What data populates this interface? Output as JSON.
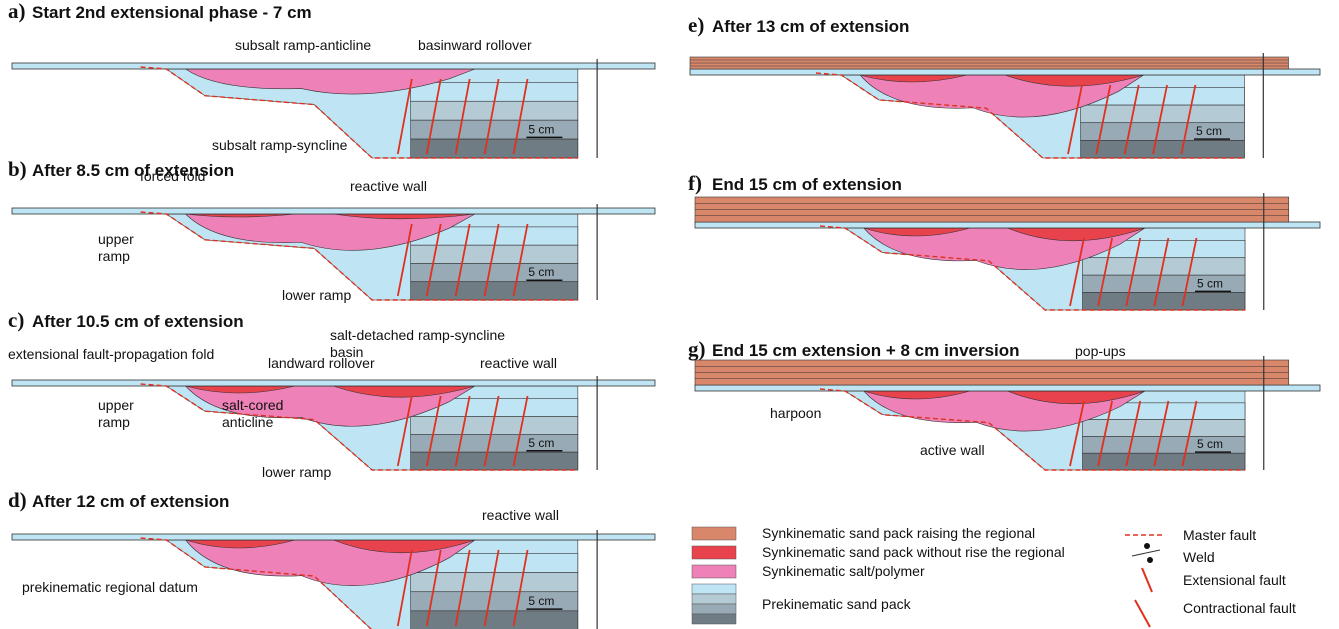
{
  "panels": [
    {
      "label": "a)",
      "title": "Start 2nd extensional phase - 7 cm",
      "scale": "5 cm",
      "annotations": [
        [
          "subsalt ramp-anticline"
        ],
        [
          "basinward rollover"
        ],
        [
          "subsalt ramp-syncline"
        ]
      ]
    },
    {
      "label": "b)",
      "title": "After 8.5 cm of extension",
      "scale": "5 cm",
      "annotations": [
        [
          "forced fold"
        ],
        [
          "reactive wall"
        ],
        [
          "upper",
          "ramp"
        ],
        [
          "lower ramp"
        ]
      ]
    },
    {
      "label": "c)",
      "title": "After 10.5 cm of extension",
      "scale": "5 cm",
      "annotations": [
        [
          "extensional fault-propagation fold"
        ],
        [
          "landward rollover"
        ],
        [
          "salt-detached ramp-syncline",
          "basin"
        ],
        [
          "reactive wall"
        ],
        [
          "upper",
          "ramp"
        ],
        [
          "salt-cored",
          "anticline"
        ],
        [
          "lower ramp"
        ]
      ]
    },
    {
      "label": "d)",
      "title": "After 12 cm of extension",
      "scale": "5 cm",
      "annotations": [
        [
          "reactive wall"
        ],
        [
          "prekinematic regional datum"
        ]
      ]
    },
    {
      "label": "e)",
      "title": "After 13 cm of extension",
      "scale": "5 cm",
      "annotations": []
    },
    {
      "label": "f)",
      "title": "End 15 cm of extension",
      "scale": "5 cm",
      "annotations": []
    },
    {
      "label": "g)",
      "title": "End 15 cm extension + 8 cm inversion",
      "scale": "5 cm",
      "annotations": [
        [
          "pop-ups"
        ],
        [
          "harpoon"
        ],
        [
          "active wall"
        ]
      ]
    }
  ],
  "legend": {
    "left": [
      "Synkinematic sand pack raising the regional",
      "Synkinematic sand pack without rise the regional",
      "Synkinematic salt/polymer",
      "Prekinematic sand pack"
    ],
    "right": [
      "Master fault",
      "Weld",
      "Extensional fault",
      "Contractional fault"
    ]
  }
}
